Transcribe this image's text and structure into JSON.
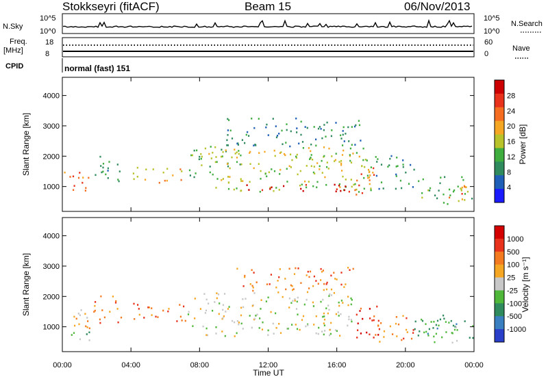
{
  "header": {
    "station": "Stokkseyri (fitACF)",
    "beam": "Beam 15",
    "date": "06/Nov/2013"
  },
  "nsky_panel": {
    "left_label": "N.Sky",
    "left_ticks": [
      "10^5",
      "10^0"
    ],
    "right_label": "N.Search",
    "right_ticks": [
      "10^5",
      "10^0"
    ]
  },
  "freq_panel": {
    "left_label_1": "Freq.",
    "left_label_2": "[MHz]",
    "left_ticks": [
      "18",
      "8"
    ],
    "right_label": "Nave",
    "right_ticks": [
      "60",
      "0"
    ]
  },
  "cpid_panel": {
    "label": "CPID",
    "text": "normal (fast) 151"
  },
  "chart_data": [
    {
      "type": "heatmap",
      "title": "",
      "xlabel": "Time UT",
      "ylabel": "Slant Range [km]",
      "xlim": [
        0,
        24
      ],
      "ylim": [
        180,
        4600
      ],
      "x_ticks": [
        "00:00",
        "04:00",
        "08:00",
        "12:00",
        "16:00",
        "20:00",
        "00:00"
      ],
      "y_ticks": [
        "1000",
        "2000",
        "3000",
        "4000"
      ],
      "colorbar_label": "Power [dB]",
      "colorbar_ticks": [
        "4",
        "8",
        "12",
        "16",
        "20",
        "24",
        "28"
      ],
      "colorbar_colors": [
        "#1a1aff",
        "#1f5fb8",
        "#2f8a5e",
        "#3fae3f",
        "#b8c22a",
        "#f5a623",
        "#f46d21",
        "#e8321c",
        "#cc0000"
      ],
      "regions": [
        {
          "t0": 0.1,
          "t1": 1.6,
          "r0": 800,
          "r1": 1550,
          "level": 6
        },
        {
          "t0": 1.8,
          "t1": 3.4,
          "r0": 1150,
          "r1": 2100,
          "level": 2
        },
        {
          "t0": 4.1,
          "t1": 7.2,
          "r0": 1150,
          "r1": 1650,
          "level": 5
        },
        {
          "t0": 7.3,
          "t1": 10.5,
          "r0": 1250,
          "r1": 2300,
          "level": 3
        },
        {
          "t0": 8.5,
          "t1": 18.0,
          "r0": 850,
          "r1": 2350,
          "level": 4
        },
        {
          "t0": 9.5,
          "t1": 17.5,
          "r0": 2350,
          "r1": 3300,
          "level": 2
        },
        {
          "t0": 10.5,
          "t1": 17.0,
          "r0": 850,
          "r1": 1100,
          "level": 8
        },
        {
          "t0": 17.0,
          "t1": 18.2,
          "r0": 650,
          "r1": 1800,
          "level": 6
        },
        {
          "t0": 18.2,
          "t1": 20.5,
          "r0": 900,
          "r1": 2050,
          "level": 2
        },
        {
          "t0": 20.5,
          "t1": 23.9,
          "r0": 450,
          "r1": 1350,
          "level": 3
        },
        {
          "t0": 22.5,
          "t1": 23.8,
          "r0": 600,
          "r1": 1100,
          "level": 6
        }
      ]
    },
    {
      "type": "heatmap",
      "title": "",
      "xlabel": "Time UT",
      "ylabel": "Slant Range [km]",
      "xlim": [
        0,
        24
      ],
      "ylim": [
        180,
        4600
      ],
      "x_ticks": [
        "00:00",
        "04:00",
        "08:00",
        "12:00",
        "16:00",
        "20:00",
        "00:00"
      ],
      "y_ticks": [
        "1000",
        "2000",
        "3000",
        "4000"
      ],
      "colorbar_label": "Velocity [m s⁻¹]",
      "colorbar_ticks": [
        "1000",
        "500",
        "100",
        "25",
        "-25",
        "-100",
        "-500",
        "-1000"
      ],
      "colorbar_colors": [
        "#2a3fc9",
        "#3a7fc0",
        "#2f8a5e",
        "#4fb83a",
        "#c8c8c8",
        "#f5a623",
        "#f47a20",
        "#e8321c",
        "#d40000"
      ],
      "regions": [
        {
          "t0": 0.1,
          "t1": 1.6,
          "r0": 900,
          "r1": 1700,
          "level": 5
        },
        {
          "t0": 0.1,
          "t1": 1.6,
          "r0": 500,
          "r1": 900,
          "level": 3
        },
        {
          "t0": 1.8,
          "t1": 3.4,
          "r0": 1150,
          "r1": 2100,
          "level": 6
        },
        {
          "t0": 4.1,
          "t1": 7.2,
          "r0": 1150,
          "r1": 1800,
          "level": 6
        },
        {
          "t0": 7.3,
          "t1": 17.0,
          "r0": 700,
          "r1": 2200,
          "level": 4
        },
        {
          "t0": 10.0,
          "t1": 17.0,
          "r0": 2200,
          "r1": 3000,
          "level": 6
        },
        {
          "t0": 17.0,
          "t1": 18.5,
          "r0": 650,
          "r1": 1800,
          "level": 7
        },
        {
          "t0": 18.0,
          "t1": 20.5,
          "r0": 500,
          "r1": 1400,
          "level": 6
        },
        {
          "t0": 20.5,
          "t1": 23.0,
          "r0": 700,
          "r1": 1600,
          "level": 2
        },
        {
          "t0": 21.5,
          "t1": 23.9,
          "r0": 500,
          "r1": 1300,
          "level": 3
        }
      ]
    }
  ]
}
